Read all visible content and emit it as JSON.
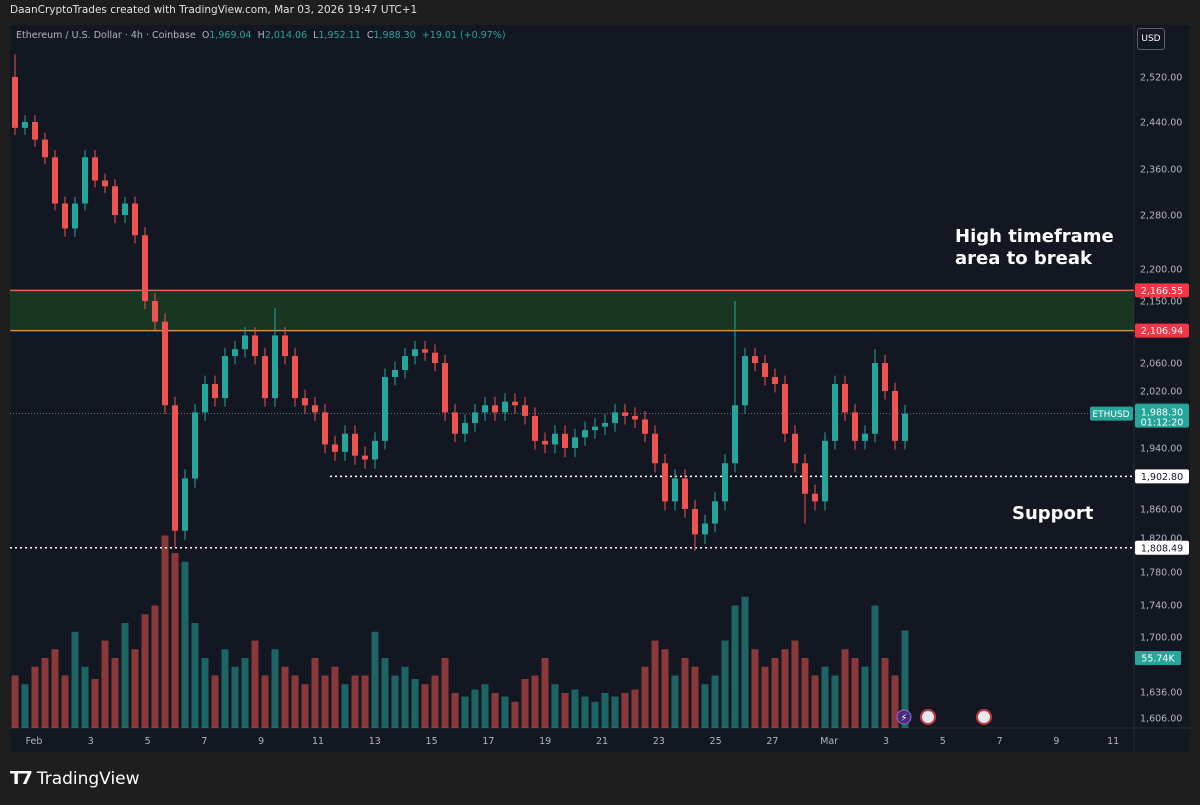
{
  "header": {
    "attribution": "DaanCryptoTrades created with TradingView.com, Mar 03, 2026 19:47 UTC+1"
  },
  "legend": {
    "symbol": "Ethereum / U.S. Dollar · 4h · Coinbase",
    "o_label": "O",
    "o": "1,969.04",
    "h_label": "H",
    "h": "2,014.06",
    "l_label": "L",
    "l": "1,952.11",
    "c_label": "C",
    "c": "1,988.30",
    "change": "+19.01 (+0.97%)"
  },
  "currency_button": "USD",
  "annotations": {
    "resistance_line1": "High timeframe",
    "resistance_line2": "area to break",
    "support": "Support"
  },
  "colors": {
    "up": "#26a69a",
    "down": "#ef5350",
    "zone_fill": "#1b3a22",
    "zone_top": "#e0674f",
    "zone_bottom": "#d08a3c",
    "background": "#131722"
  },
  "footer": {
    "logo": "TradingView"
  },
  "chart_data": {
    "type": "candlestick",
    "symbol_label": "ETHUSD",
    "countdown": "01:12:20",
    "last_price": 1988.3,
    "last_price_label": "1,988.30",
    "volume_last_label": "55.74K",
    "y_ticks": [
      "2,520.00",
      "2,440.00",
      "2,360.00",
      "2,280.00",
      "2,200.00",
      "2,150.00",
      "2,060.00",
      "2,020.00",
      "1,940.00",
      "1,860.00",
      "1,820.00",
      "1,780.00",
      "1,740.00",
      "1,700.00",
      "1,636.00",
      "1,606.00"
    ],
    "x_ticks": [
      "Feb",
      "3",
      "5",
      "7",
      "9",
      "11",
      "13",
      "15",
      "17",
      "19",
      "21",
      "23",
      "25",
      "27",
      "Mar",
      "3",
      "5",
      "7",
      "9",
      "11"
    ],
    "zone": {
      "top": 2166.55,
      "bottom": 2106.94,
      "top_label": "2,166.55",
      "bottom_label": "2,106.94"
    },
    "support_levels": [
      {
        "value": 1902.8,
        "label": "1,902.80"
      },
      {
        "value": 1808.49,
        "label": "1,808.49"
      }
    ],
    "closes": [
      2430,
      2440,
      2410,
      2380,
      2300,
      2260,
      2300,
      2380,
      2340,
      2330,
      2280,
      2300,
      2250,
      2150,
      2120,
      2000,
      1830,
      1900,
      1990,
      2030,
      2010,
      2070,
      2080,
      2100,
      2070,
      2010,
      2100,
      2070,
      2010,
      2000,
      1990,
      1945,
      1935,
      1960,
      1930,
      1925,
      1950,
      2040,
      2050,
      2070,
      2080,
      2075,
      2060,
      1990,
      1960,
      1975,
      1990,
      2000,
      1990,
      2005,
      2000,
      1985,
      1950,
      1945,
      1960,
      1940,
      1955,
      1965,
      1970,
      1975,
      1990,
      1985,
      1980,
      1960,
      1920,
      1870,
      1900,
      1860,
      1825,
      1840,
      1870,
      1920,
      2000,
      2070,
      2060,
      2040,
      2030,
      1960,
      1920,
      1880,
      1870,
      1950,
      2030,
      1990,
      1950,
      1960,
      2060,
      2020,
      1950,
      1988.3
    ],
    "first_open": 2520,
    "first_high": 2560,
    "extreme_highs": {
      "72": 2150,
      "26": 2140,
      "86": 2080
    },
    "extreme_lows": {
      "16": 1808.49,
      "68": 1805,
      "79": 1840
    },
    "volume_k": [
      30,
      25,
      35,
      40,
      45,
      30,
      55,
      35,
      28,
      50,
      40,
      60,
      45,
      65,
      70,
      110,
      100,
      95,
      60,
      40,
      30,
      45,
      35,
      40,
      50,
      30,
      45,
      35,
      30,
      25,
      40,
      30,
      35,
      25,
      30,
      30,
      55,
      40,
      30,
      35,
      28,
      25,
      30,
      40,
      20,
      18,
      22,
      25,
      20,
      18,
      15,
      28,
      30,
      40,
      25,
      20,
      22,
      18,
      15,
      20,
      18,
      20,
      22,
      35,
      50,
      45,
      30,
      40,
      35,
      25,
      30,
      50,
      70,
      75,
      45,
      35,
      40,
      45,
      50,
      40,
      30,
      35,
      30,
      45,
      40,
      35,
      70,
      40,
      30,
      55.74
    ]
  }
}
